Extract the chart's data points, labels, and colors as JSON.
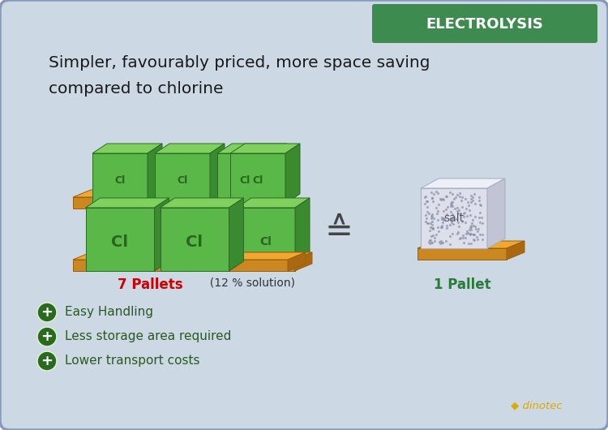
{
  "title_text1": "Simpler, favourably priced, more space saving",
  "title_text2": "compared to chlorine",
  "header_text": "ELECTROLYSIS",
  "header_bg": "#3d8b4e",
  "card_bg": "#ccd8e4",
  "border_color": "#8899bb",
  "seven_pallets_label": "7 Pallets",
  "seven_pallets_color": "#cc0000",
  "solution_label": "  (12 % solution)",
  "solution_color": "#333333",
  "one_pallet_label": "1 Pallet",
  "one_pallet_color": "#2a7a3a",
  "salt_label": "salt",
  "advantages": [
    "Easy Handling",
    "Less storage area required",
    "Lower transport costs"
  ],
  "advantage_color": "#2a5a20",
  "plus_bg": "#2a6a20",
  "pallet_top": "#f0a830",
  "pallet_front": "#cc8820",
  "pallet_right": "#aa6810",
  "box_front": "#5ab848",
  "box_top": "#80d060",
  "box_right": "#3a8a30",
  "box_label_color": "#1a4a10",
  "salt_front": "#dde0ea",
  "salt_top": "#eef0f8",
  "salt_right": "#c0c4d4",
  "dinotec_color": "#ddaa00",
  "equals_color": "#444444"
}
